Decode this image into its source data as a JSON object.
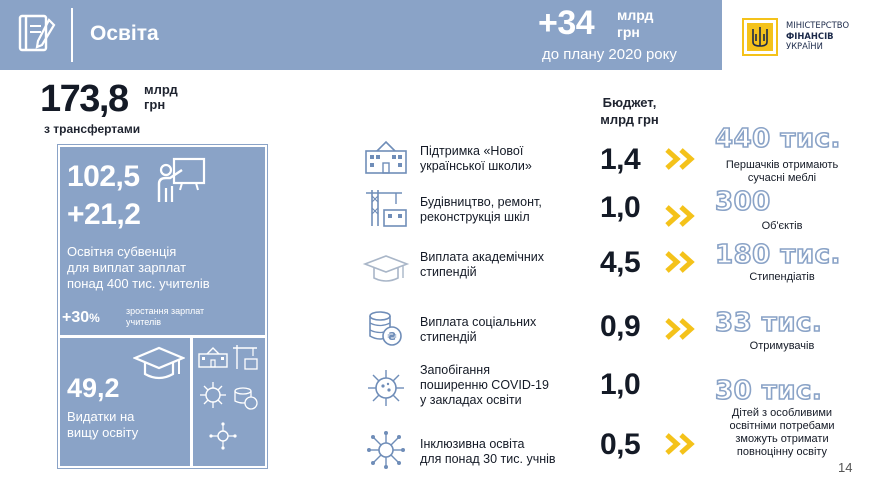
{
  "header": {
    "title": "Освіта",
    "increase": "+34",
    "increase_unit_1": "млрд",
    "increase_unit_2": "грн",
    "subtitle": "до плану 2020 року"
  },
  "ministry": {
    "line1": "МІНІСТЕРСТВО",
    "line2": "ФІНАНСІВ",
    "line3": "УКРАЇНИ"
  },
  "total": {
    "value": "173,8",
    "unit_1": "млрд",
    "unit_2": "грн",
    "caption": "з трансфертами"
  },
  "subvention": {
    "value": "102,5",
    "increase": "+21,2",
    "desc_1": "Освітня субвенція",
    "desc_2": "для виплат зарплат",
    "desc_3": "понад 400 тис. учителів",
    "pct_value": "+30",
    "pct_sign": "%",
    "pct_note_1": "зростання зарплат",
    "pct_note_2": "учителів"
  },
  "higher": {
    "value": "49,2",
    "desc_1": "Видатки на",
    "desc_2": "вищу освіту"
  },
  "budget_header": {
    "line1": "Бюджет,",
    "line2": "млрд грн"
  },
  "rows": [
    {
      "icon": "school-building-icon",
      "label_1": "Підтримка «Нової",
      "label_2": "української школи»",
      "value": "1,4",
      "big": "440 тис.",
      "small_1": "Першачків отримають",
      "small_2": "сучасні меблі"
    },
    {
      "icon": "construction-crane-icon",
      "label_1": "Будівництво, ремонт,",
      "label_2": "реконструкція шкіл",
      "value": "1,0",
      "big": "300",
      "small_1": "Об'єктів",
      "small_2": ""
    },
    {
      "icon": "graduation-cap-icon",
      "label_1": "Виплата академічних",
      "label_2": "стипендій",
      "value": "4,5",
      "big": "180 тис.",
      "small_1": "Стипендіатів",
      "small_2": ""
    },
    {
      "icon": "coins-icon",
      "label_1": "Виплата соціальних",
      "label_2": "стипендій",
      "value": "0,9",
      "big": "33 тис.",
      "small_1": "Отримувачів",
      "small_2": ""
    },
    {
      "icon": "virus-icon",
      "label_1": "Запобігання",
      "label_2": "поширенню COVID-19",
      "label_3": "у закладах освіти",
      "value": "1,0",
      "big": "30 тис.",
      "small_1": "Дітей з особливими",
      "small_2": "освітніми потребами",
      "small_3": "зможуть отримати",
      "small_4": "повноцінну освіту"
    },
    {
      "icon": "network-icon",
      "label_1": "Інклюзивна освіта",
      "label_2": "для понад 30 тис. учнів",
      "value": "0,5"
    }
  ],
  "page_number": "14",
  "colors": {
    "panel_blue": "#8aa3c7",
    "chevron_yellow": "#f4c21a",
    "icon_blue": "#6f8db8",
    "text_dark": "#141a26"
  }
}
